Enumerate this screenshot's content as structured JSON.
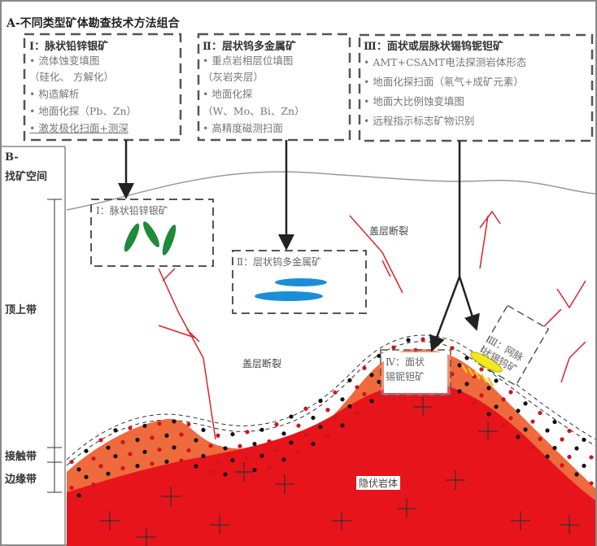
{
  "section_a": {
    "title": "A-不同类型矿体勘查技术方法组合",
    "boxes": [
      {
        "heading": "Ⅰ：脉状铅锌银矿",
        "items": [
          "• 流体蚀变填图",
          "（硅化、 方解化）",
          "• 构造解析",
          "• 地面化探（Pb、Zn）",
          "• 激发极化扫面+测深"
        ]
      },
      {
        "heading": "Ⅱ：层状钨多金属矿",
        "items": [
          "• 重点岩相层位填图",
          "（灰岩夹层）",
          "• 地面化探",
          "（W、Mo、Bi、Zn）",
          "• 高精度磁测扫面"
        ]
      },
      {
        "heading": "Ⅲ：面状或层脉状锡钨铌钽矿",
        "items": [
          "• AMT+CSAMT电法探测岩体形态",
          "• 地面化探扫面（氡气+成矿元素）",
          "• 地面大比例蚀变填图",
          "• 远程指示标志矿物识别"
        ]
      }
    ]
  },
  "section_b": {
    "title_line1": "B-",
    "title_line2": "找矿空间",
    "zones": [
      "顶上带",
      "接触带",
      "边缘带"
    ]
  },
  "field": {
    "ore_i": "Ⅰ：脉状铅锌银矿",
    "ore_ii": "Ⅱ：层状钨多金属矿",
    "ore_iii": "Ⅲ：网脉状锡钨矿",
    "ore_iv_line1": "Ⅳ：面状",
    "ore_iv_line2": "锡铌钽矿",
    "fault_label_1": "盖层断裂",
    "fault_label_2": "盖层断裂",
    "intrusion": "隐伏岩体"
  },
  "colors": {
    "intrusion": "#e8141b",
    "aureole": "#ef6a3c",
    "vein_lead_zinc": "#1e8a3a",
    "strata_tungsten": "#1a8fd8",
    "tin_tungsten": "#f2e81e",
    "fault": "#d9252c"
  }
}
